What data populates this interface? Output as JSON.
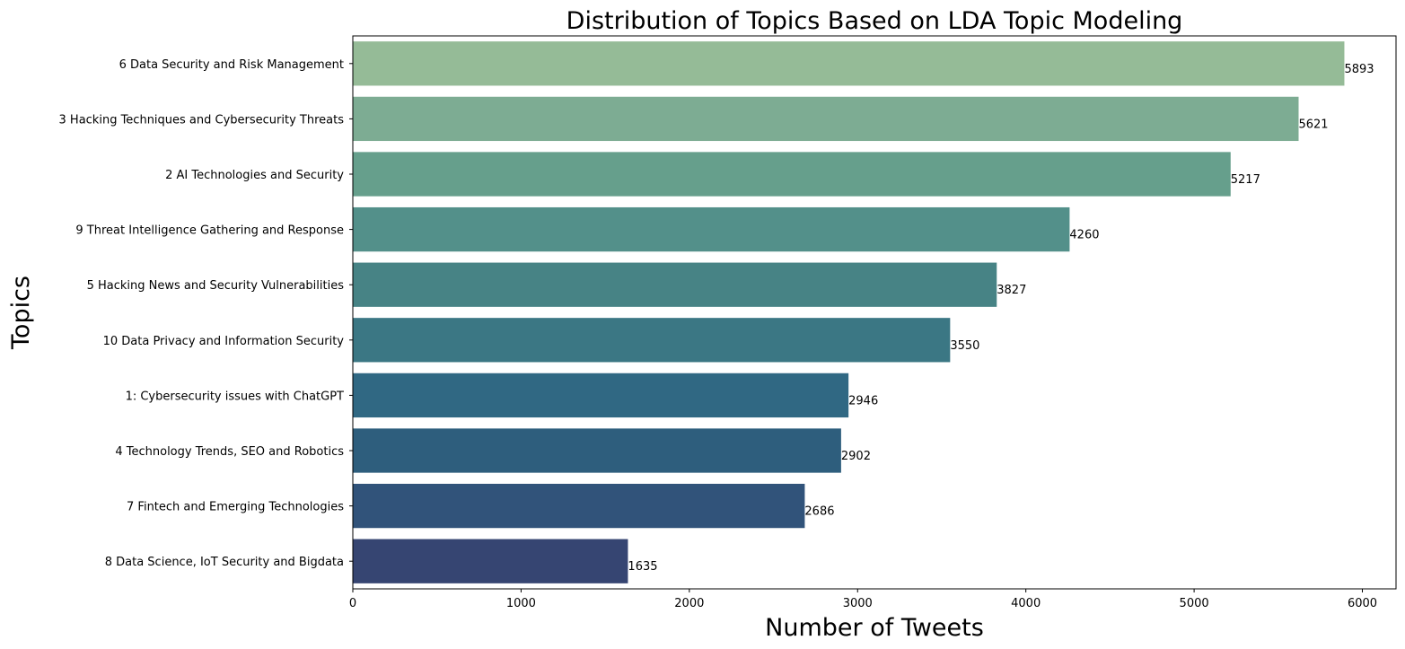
{
  "chart_data": {
    "type": "bar",
    "orientation": "horizontal",
    "title": "Distribution of Topics Based on LDA Topic Modeling",
    "xlabel": "Number of Tweets",
    "ylabel": "Topics",
    "xlim": [
      0,
      6200
    ],
    "xticks": [
      0,
      1000,
      2000,
      3000,
      4000,
      5000,
      6000
    ],
    "grid": false,
    "categories": [
      "6 Data Security and Risk Management",
      "3 Hacking Techniques and Cybersecurity Threats",
      "2 AI Technologies and Security",
      "9 Threat Intelligence Gathering and Response",
      "5 Hacking News and Security Vulnerabilities",
      "10 Data Privacy and Information Security",
      "1: Cybersecurity issues with ChatGPT",
      "4 Technology Trends, SEO and Robotics",
      "7 Fintech and Emerging Technologies",
      "8 Data Science, IoT Security and Bigdata"
    ],
    "values": [
      5893,
      5621,
      5217,
      4260,
      3827,
      3550,
      2946,
      2902,
      2686,
      1635
    ],
    "colors": [
      "#95bb97",
      "#7dac93",
      "#669f8c",
      "#53908a",
      "#478385",
      "#3b7784",
      "#306883",
      "#2e5e7d",
      "#31537a",
      "#364572"
    ]
  }
}
